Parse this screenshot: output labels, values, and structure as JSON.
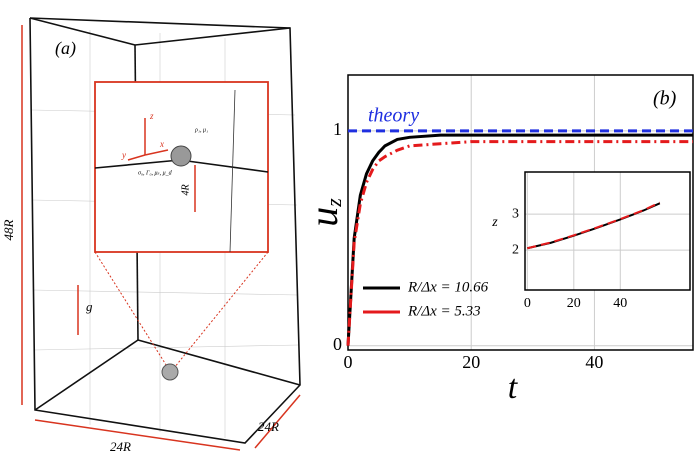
{
  "diagram": {
    "panel_label": "(a)",
    "height_label": "48R",
    "width_label": "24R",
    "depth_label": "24R",
    "gravity_label": "g",
    "z_axis": "z",
    "y_axis": "y",
    "x_axis": "x",
    "fluid_props": "ρ₁, μ₁",
    "interface_props": "σ₀, Γ₀, μₛ, μ_d",
    "distance_label": "4R"
  },
  "chart_data": [
    {
      "type": "line",
      "title": "(b)",
      "xlabel": "t",
      "ylabel": "u",
      "ylabel_sub": "z",
      "xlim": [
        0,
        56
      ],
      "ylim": [
        -0.02,
        1.26
      ],
      "xticks": [
        0,
        20,
        40
      ],
      "yticks": [
        0,
        1
      ],
      "grid": true,
      "legend": "lower left",
      "x": [
        0,
        1,
        2,
        3,
        4,
        5,
        6,
        8,
        10,
        15,
        20,
        30,
        40,
        50,
        56
      ],
      "series": [
        {
          "name": "theory",
          "color": "#1f2fe0",
          "linestyle": "dashed",
          "values": [
            1,
            1,
            1,
            1,
            1,
            1,
            1,
            1,
            1,
            1,
            1,
            1,
            1,
            1,
            1
          ]
        },
        {
          "name": "R/Δx = 10.66",
          "color": "#000000",
          "linestyle": "solid",
          "values": [
            0,
            0.5,
            0.7,
            0.8,
            0.86,
            0.9,
            0.93,
            0.96,
            0.97,
            0.98,
            0.98,
            0.98,
            0.98,
            0.98,
            0.98
          ]
        },
        {
          "name": "R/Δx = 5.33",
          "color": "#e41a1c",
          "linestyle": "dashdot",
          "values": [
            0,
            0.48,
            0.66,
            0.76,
            0.82,
            0.86,
            0.88,
            0.91,
            0.93,
            0.94,
            0.95,
            0.95,
            0.95,
            0.95,
            0.95
          ]
        }
      ]
    },
    {
      "type": "line",
      "ylabel": "z",
      "xlim": [
        -1,
        70
      ],
      "ylim": [
        0.89,
        4.17
      ],
      "xticks": [
        0,
        20,
        40
      ],
      "yticks": [
        2,
        3
      ],
      "grid": true,
      "x": [
        0,
        10,
        20,
        30,
        40,
        50,
        57
      ],
      "series": [
        {
          "color": "#000000",
          "linestyle": "solid",
          "values": [
            2.05,
            2.2,
            2.4,
            2.62,
            2.85,
            3.1,
            3.3
          ]
        },
        {
          "color": "#e41a1c",
          "linestyle": "dashed",
          "values": [
            2.05,
            2.21,
            2.41,
            2.63,
            2.86,
            3.11,
            3.32
          ]
        }
      ]
    }
  ]
}
